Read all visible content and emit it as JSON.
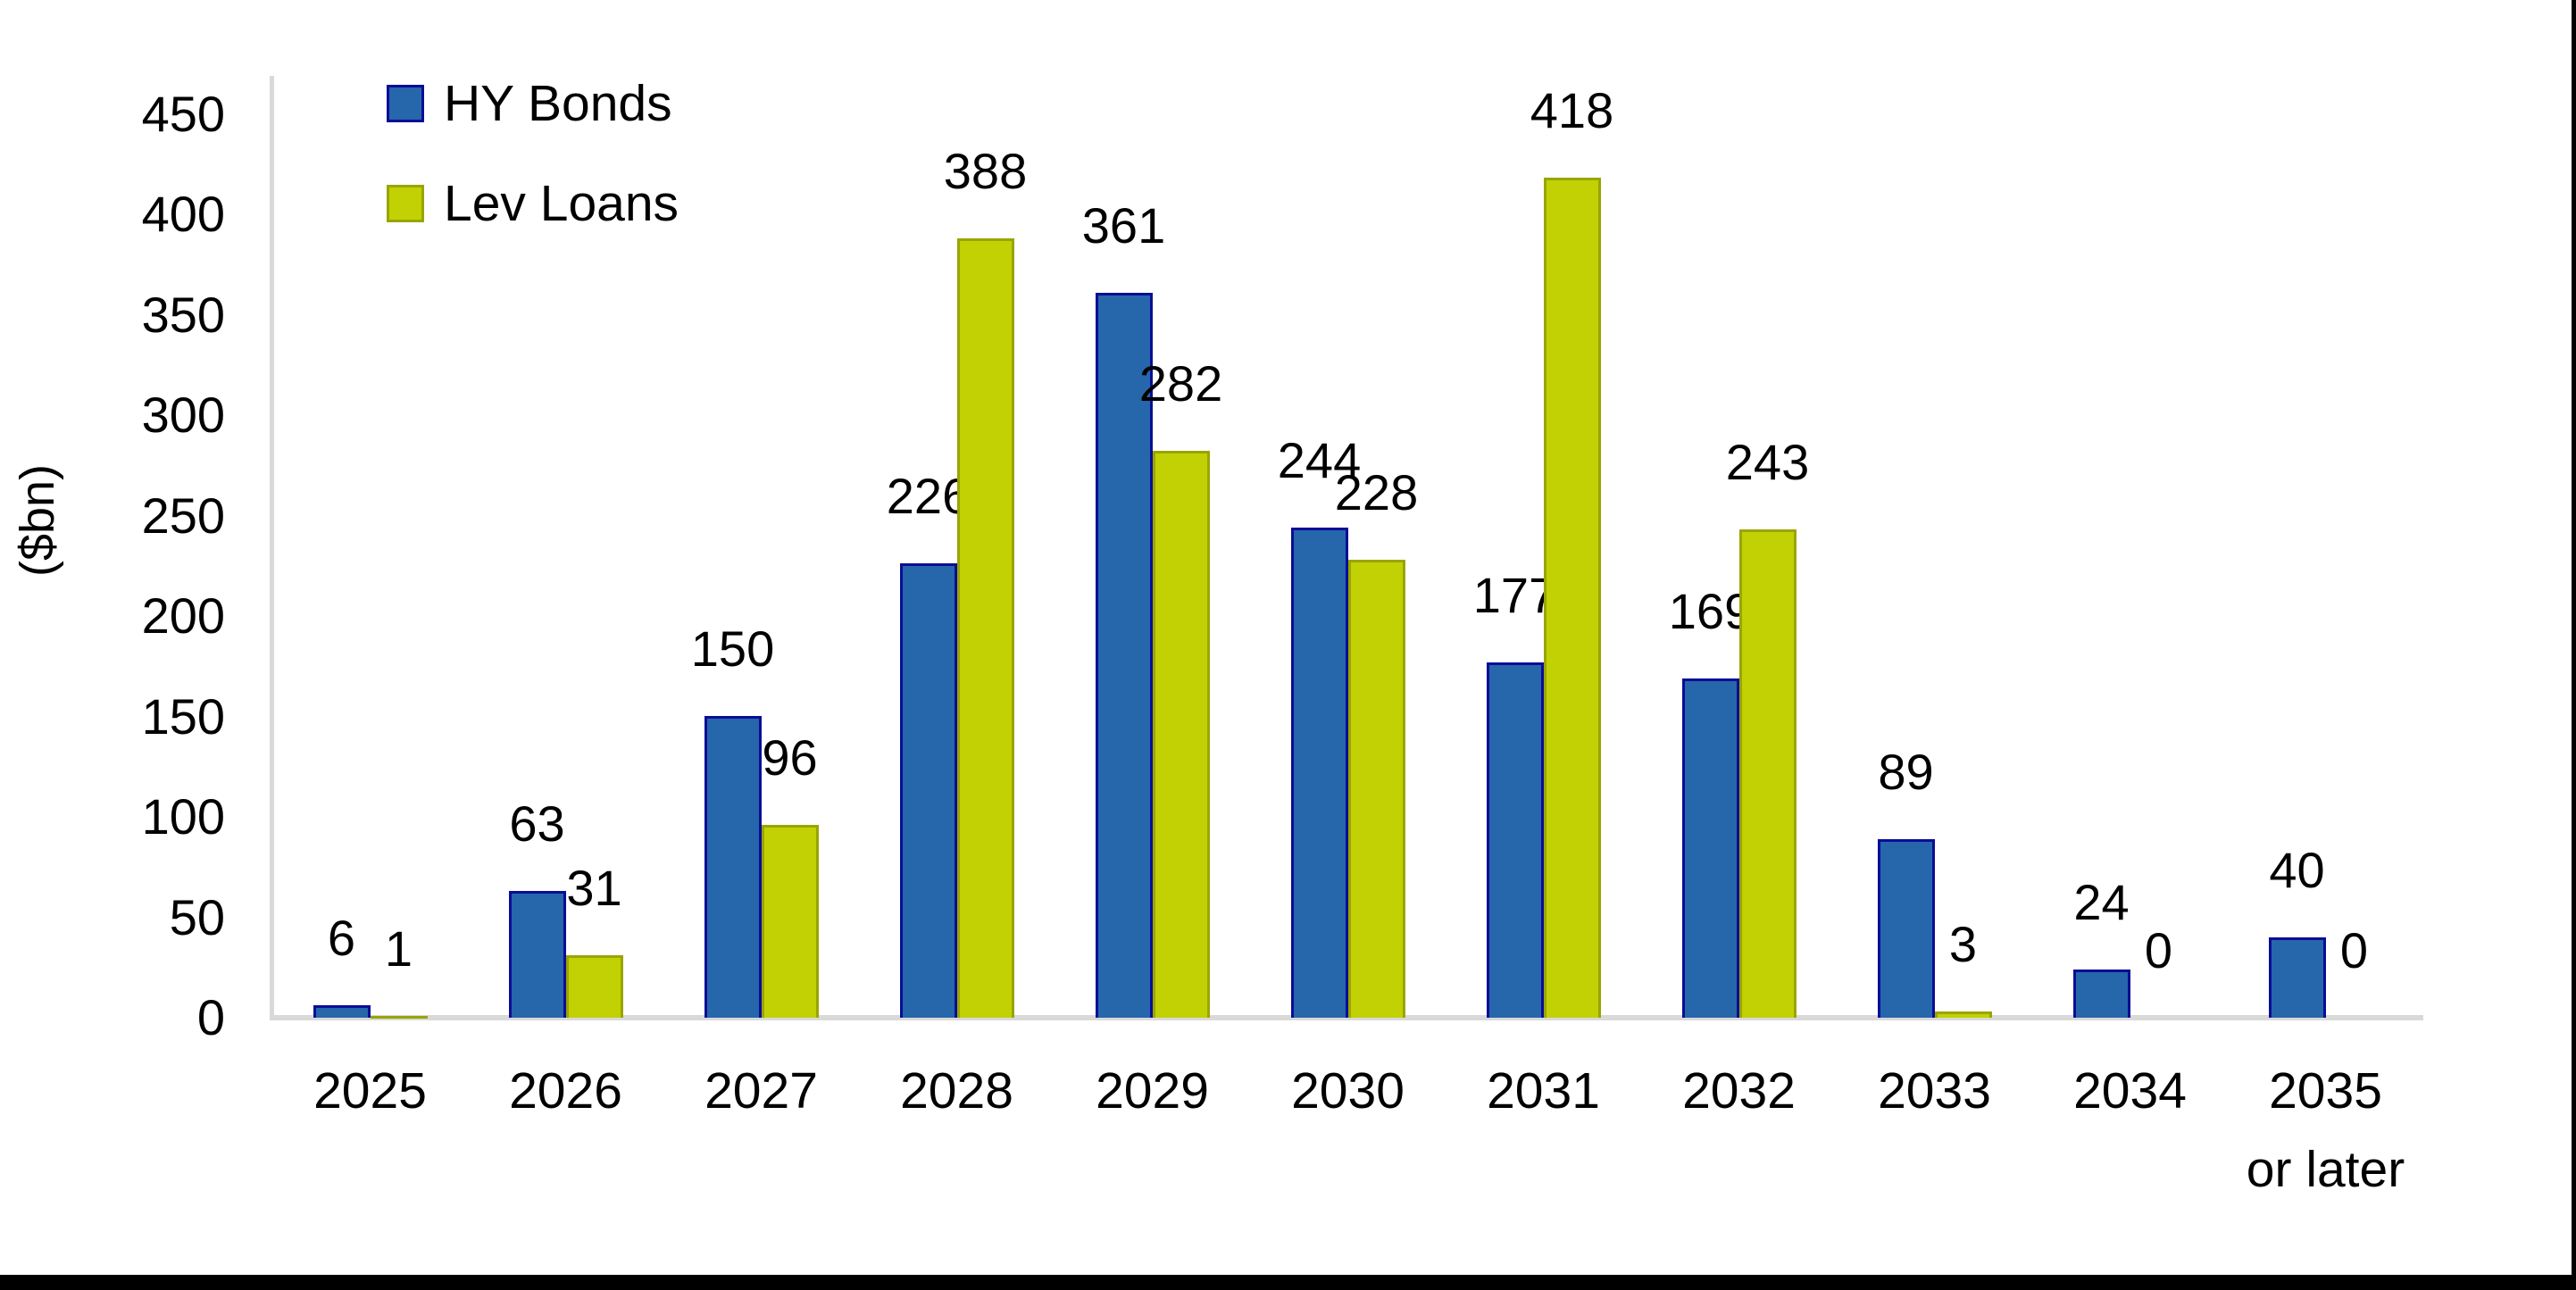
{
  "chart_data": {
    "type": "bar",
    "title": "",
    "xlabel": "",
    "ylabel": "($bn)",
    "ylim": [
      0,
      450
    ],
    "ytick_step": 50,
    "ytick_labels": [
      "0",
      "50",
      "100",
      "150",
      "200",
      "250",
      "300",
      "350",
      "400",
      "450"
    ],
    "grid": false,
    "legend_position": "top-left",
    "axis_line_color": "#d9d9d9",
    "label_color": "#000000",
    "categories": [
      "2025",
      "2026",
      "2027",
      "2028",
      "2029",
      "2030",
      "2031",
      "2032",
      "2033",
      "2034",
      "2035"
    ],
    "category_sublabels": [
      "",
      "",
      "",
      "",
      "",
      "",
      "",
      "",
      "",
      "",
      "or later"
    ],
    "series": [
      {
        "name": "HY Bonds",
        "fill_color": "#2666AB",
        "border_color": "#0B0D96",
        "values": [
          6,
          63,
          150,
          226,
          361,
          244,
          177,
          169,
          89,
          24,
          40
        ]
      },
      {
        "name": "Lev Loans",
        "fill_color": "#C2D103",
        "border_color": "#99A500",
        "values": [
          1,
          31,
          96,
          388,
          282,
          228,
          418,
          243,
          3,
          0,
          0
        ]
      }
    ]
  }
}
